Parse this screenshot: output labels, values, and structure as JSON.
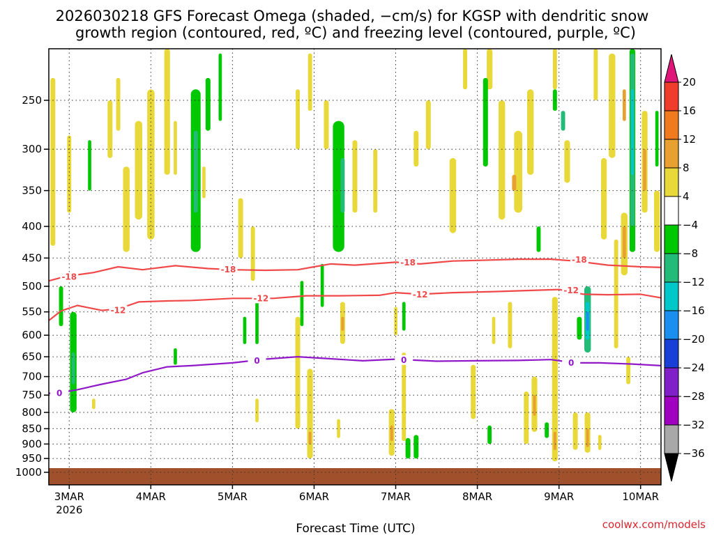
{
  "chart_data": {
    "type": "heatmap",
    "title_line1": "2026030218 GFS Forecast Omega (shaded, −cm/s) for KGSP with dendritic snow",
    "title_line2": "growth region (contoured, red, ºC) and freezing level (contoured, purple, ºC)",
    "xlabel": "Forecast Time (UTC)",
    "credit": "coolwx.com/models",
    "x_ticks": [
      "3MAR",
      "4MAR",
      "5MAR",
      "6MAR",
      "7MAR",
      "8MAR",
      "9MAR",
      "10MAR"
    ],
    "x_year": "2026",
    "x_range_days": [
      2.75,
      10.25
    ],
    "y_ticks": [
      "250",
      "300",
      "350",
      "400",
      "450",
      "500",
      "550",
      "600",
      "650",
      "700",
      "750",
      "800",
      "850",
      "900",
      "950",
      "1000"
    ],
    "y_range_hpa": [
      200,
      1000
    ],
    "colorbar_labels": [
      "20",
      "16",
      "12",
      "8",
      "4",
      "−4",
      "−8",
      "−12",
      "−16",
      "−20",
      "−24",
      "−28",
      "−32",
      "−36"
    ],
    "colorbar_colors": [
      "#e0157a",
      "#f03c2a",
      "#f07a1e",
      "#e8a030",
      "#e8d83a",
      "#ffffff",
      "#00c800",
      "#22bb77",
      "#00c8c8",
      "#1a8ff0",
      "#1840d8",
      "#8020c8",
      "#a000c0",
      "#a8a8a8",
      "#000000"
    ],
    "omega_colors": {
      "pos4": "#e8d83a",
      "pos8": "#e8a030",
      "neg4": "#00c800",
      "neg8": "#22bb77",
      "neg12": "#00c8c8",
      "neg16": "#1a8ff0"
    },
    "surface_color": "#a0502a",
    "contours": [
      {
        "label": "-18",
        "color": "#f04848",
        "points": [
          [
            2.75,
            490
          ],
          [
            2.95,
            482
          ],
          [
            3.3,
            475
          ],
          [
            3.6,
            465
          ],
          [
            3.9,
            470
          ],
          [
            4.3,
            463
          ],
          [
            4.7,
            468
          ],
          [
            5.0,
            470
          ],
          [
            5.4,
            471
          ],
          [
            5.8,
            470
          ],
          [
            6.0,
            465
          ],
          [
            6.2,
            460
          ],
          [
            6.5,
            462
          ],
          [
            7.0,
            457
          ],
          [
            7.3,
            460
          ],
          [
            7.7,
            455
          ],
          [
            8.0,
            454
          ],
          [
            8.5,
            452
          ],
          [
            8.9,
            452
          ],
          [
            9.2,
            455
          ],
          [
            9.6,
            462
          ],
          [
            10.0,
            465
          ],
          [
            10.25,
            466
          ]
        ],
        "label_at": [
          [
            3.0,
            483
          ],
          [
            4.95,
            470
          ],
          [
            7.15,
            458
          ],
          [
            9.25,
            453
          ]
        ]
      },
      {
        "label": "-12",
        "color": "#f04848",
        "points": [
          [
            2.75,
            568
          ],
          [
            2.9,
            548
          ],
          [
            3.1,
            537
          ],
          [
            3.4,
            547
          ],
          [
            3.6,
            544
          ],
          [
            3.85,
            530
          ],
          [
            4.2,
            528
          ],
          [
            4.5,
            527
          ],
          [
            5.0,
            523
          ],
          [
            5.5,
            523
          ],
          [
            5.9,
            518
          ],
          [
            6.3,
            518
          ],
          [
            6.8,
            517
          ],
          [
            7.0,
            512
          ],
          [
            7.3,
            515
          ],
          [
            7.7,
            512
          ],
          [
            8.2,
            510
          ],
          [
            8.6,
            508
          ],
          [
            9.0,
            506
          ],
          [
            9.3,
            515
          ],
          [
            9.6,
            516
          ],
          [
            10.0,
            515
          ],
          [
            10.25,
            522
          ]
        ],
        "label_at": [
          [
            3.6,
            547
          ],
          [
            5.35,
            523
          ],
          [
            7.3,
            516
          ],
          [
            9.15,
            508
          ]
        ]
      },
      {
        "label": "0",
        "color": "#9018c8",
        "points": [
          [
            2.75,
            745
          ],
          [
            2.9,
            743
          ],
          [
            3.1,
            735
          ],
          [
            3.4,
            720
          ],
          [
            3.7,
            707
          ],
          [
            3.9,
            690
          ],
          [
            4.2,
            675
          ],
          [
            4.5,
            672
          ],
          [
            5.0,
            665
          ],
          [
            5.4,
            656
          ],
          [
            5.8,
            650
          ],
          [
            6.2,
            655
          ],
          [
            6.6,
            660
          ],
          [
            7.0,
            656
          ],
          [
            7.5,
            661
          ],
          [
            8.0,
            660
          ],
          [
            8.5,
            659
          ],
          [
            8.9,
            657
          ],
          [
            9.2,
            665
          ],
          [
            9.5,
            665
          ],
          [
            9.9,
            668
          ],
          [
            10.25,
            672
          ]
        ],
        "label_at": [
          [
            2.88,
            745
          ],
          [
            5.3,
            660
          ],
          [
            7.1,
            658
          ],
          [
            9.15,
            665
          ]
        ]
      }
    ],
    "omega_blobs": [
      {
        "cat": "pos4",
        "x": 2.8,
        "w": 0.06,
        "p1": 230,
        "p2": 430
      },
      {
        "cat": "pos4",
        "x": 3.0,
        "w": 0.05,
        "p1": 285,
        "p2": 380
      },
      {
        "cat": "pos4",
        "x": 3.5,
        "w": 0.06,
        "p1": 250,
        "p2": 310
      },
      {
        "cat": "pos4",
        "x": 3.6,
        "w": 0.05,
        "p1": 230,
        "p2": 280
      },
      {
        "cat": "pos4",
        "x": 3.7,
        "w": 0.08,
        "p1": 320,
        "p2": 440
      },
      {
        "cat": "pos4",
        "x": 3.85,
        "w": 0.09,
        "p1": 270,
        "p2": 390
      },
      {
        "cat": "pos4",
        "x": 4.0,
        "w": 0.09,
        "p1": 240,
        "p2": 420
      },
      {
        "cat": "pos4",
        "x": 4.2,
        "w": 0.07,
        "p1": 200,
        "p2": 330
      },
      {
        "cat": "pos4",
        "x": 4.3,
        "w": 0.04,
        "p1": 270,
        "p2": 330
      },
      {
        "cat": "pos4",
        "x": 4.65,
        "w": 0.04,
        "p1": 320,
        "p2": 360
      },
      {
        "cat": "pos4",
        "x": 5.1,
        "w": 0.06,
        "p1": 360,
        "p2": 450
      },
      {
        "cat": "pos4",
        "x": 5.25,
        "w": 0.05,
        "p1": 400,
        "p2": 490
      },
      {
        "cat": "pos4",
        "x": 5.8,
        "w": 0.05,
        "p1": 240,
        "p2": 300
      },
      {
        "cat": "pos4",
        "x": 5.95,
        "w": 0.05,
        "p1": 210,
        "p2": 260
      },
      {
        "cat": "pos4",
        "x": 6.15,
        "w": 0.06,
        "p1": 250,
        "p2": 300
      },
      {
        "cat": "pos4",
        "x": 6.3,
        "w": 0.05,
        "p1": 290,
        "p2": 330
      },
      {
        "cat": "pos4",
        "x": 6.5,
        "w": 0.06,
        "p1": 290,
        "p2": 380
      },
      {
        "cat": "pos4",
        "x": 6.75,
        "w": 0.05,
        "p1": 300,
        "p2": 380
      },
      {
        "cat": "pos4",
        "x": 7.25,
        "w": 0.06,
        "p1": 280,
        "p2": 320
      },
      {
        "cat": "pos4",
        "x": 7.4,
        "w": 0.06,
        "p1": 250,
        "p2": 300
      },
      {
        "cat": "pos4",
        "x": 7.7,
        "w": 0.08,
        "p1": 310,
        "p2": 410
      },
      {
        "cat": "pos4",
        "x": 7.85,
        "w": 0.05,
        "p1": 200,
        "p2": 240
      },
      {
        "cat": "pos4",
        "x": 8.15,
        "w": 0.07,
        "p1": 200,
        "p2": 240
      },
      {
        "cat": "pos4",
        "x": 8.3,
        "w": 0.08,
        "p1": 250,
        "p2": 390
      },
      {
        "cat": "pos4",
        "x": 8.5,
        "w": 0.1,
        "p1": 280,
        "p2": 380
      },
      {
        "cat": "pos4",
        "x": 8.65,
        "w": 0.08,
        "p1": 240,
        "p2": 330
      },
      {
        "cat": "pos8",
        "x": 8.45,
        "w": 0.05,
        "p1": 330,
        "p2": 350
      },
      {
        "cat": "pos4",
        "x": 8.95,
        "w": 0.05,
        "p1": 200,
        "p2": 240
      },
      {
        "cat": "pos4",
        "x": 9.1,
        "w": 0.07,
        "p1": 290,
        "p2": 340
      },
      {
        "cat": "pos4",
        "x": 9.45,
        "w": 0.05,
        "p1": 200,
        "p2": 250
      },
      {
        "cat": "pos4",
        "x": 9.55,
        "w": 0.07,
        "p1": 310,
        "p2": 420
      },
      {
        "cat": "pos4",
        "x": 9.65,
        "w": 0.08,
        "p1": 210,
        "p2": 310
      },
      {
        "cat": "pos8",
        "x": 9.8,
        "w": 0.04,
        "p1": 240,
        "p2": 270
      },
      {
        "cat": "pos4",
        "x": 9.8,
        "w": 0.08,
        "p1": 380,
        "p2": 480
      },
      {
        "cat": "pos8",
        "x": 9.8,
        "w": 0.04,
        "p1": 400,
        "p2": 450
      },
      {
        "cat": "pos4",
        "x": 10.05,
        "w": 0.07,
        "p1": 260,
        "p2": 380
      },
      {
        "cat": "pos8",
        "x": 10.05,
        "w": 0.04,
        "p1": 300,
        "p2": 350
      },
      {
        "cat": "pos4",
        "x": 10.2,
        "w": 0.07,
        "p1": 350,
        "p2": 440
      },
      {
        "cat": "neg4",
        "x": 2.9,
        "w": 0.05,
        "p1": 500,
        "p2": 580
      },
      {
        "cat": "neg4",
        "x": 3.05,
        "w": 0.08,
        "p1": 550,
        "p2": 800
      },
      {
        "cat": "neg8",
        "x": 3.05,
        "w": 0.04,
        "p1": 640,
        "p2": 720
      },
      {
        "cat": "neg4",
        "x": 3.25,
        "w": 0.04,
        "p1": 290,
        "p2": 350
      },
      {
        "cat": "neg4",
        "x": 4.55,
        "w": 0.12,
        "p1": 240,
        "p2": 440
      },
      {
        "cat": "neg8",
        "x": 4.55,
        "w": 0.05,
        "p1": 280,
        "p2": 380
      },
      {
        "cat": "neg4",
        "x": 4.7,
        "w": 0.06,
        "p1": 230,
        "p2": 280
      },
      {
        "cat": "neg4",
        "x": 4.85,
        "w": 0.04,
        "p1": 210,
        "p2": 270
      },
      {
        "cat": "neg4",
        "x": 6.3,
        "w": 0.14,
        "p1": 270,
        "p2": 440
      },
      {
        "cat": "neg8",
        "x": 6.35,
        "w": 0.05,
        "p1": 310,
        "p2": 380
      },
      {
        "cat": "neg4",
        "x": 6.1,
        "w": 0.04,
        "p1": 460,
        "p2": 540
      },
      {
        "cat": "neg4",
        "x": 5.85,
        "w": 0.04,
        "p1": 490,
        "p2": 580
      },
      {
        "cat": "neg4",
        "x": 5.15,
        "w": 0.04,
        "p1": 560,
        "p2": 620
      },
      {
        "cat": "neg4",
        "x": 5.3,
        "w": 0.04,
        "p1": 520,
        "p2": 620
      },
      {
        "cat": "neg4",
        "x": 4.3,
        "w": 0.04,
        "p1": 630,
        "p2": 670
      },
      {
        "cat": "neg4",
        "x": 8.1,
        "w": 0.06,
        "p1": 230,
        "p2": 320
      },
      {
        "cat": "neg4",
        "x": 8.75,
        "w": 0.05,
        "p1": 400,
        "p2": 440
      },
      {
        "cat": "neg4",
        "x": 8.95,
        "w": 0.05,
        "p1": 240,
        "p2": 260
      },
      {
        "cat": "neg8",
        "x": 9.05,
        "w": 0.05,
        "p1": 260,
        "p2": 280
      },
      {
        "cat": "neg4",
        "x": 9.25,
        "w": 0.06,
        "p1": 560,
        "p2": 610
      },
      {
        "cat": "neg8",
        "x": 9.35,
        "w": 0.08,
        "p1": 500,
        "p2": 640
      },
      {
        "cat": "neg12",
        "x": 9.35,
        "w": 0.05,
        "p1": 530,
        "p2": 610
      },
      {
        "cat": "neg16",
        "x": 9.35,
        "w": 0.03,
        "p1": 550,
        "p2": 590
      },
      {
        "cat": "neg4",
        "x": 9.9,
        "w": 0.07,
        "p1": 200,
        "p2": 440
      },
      {
        "cat": "neg8",
        "x": 9.9,
        "w": 0.05,
        "p1": 210,
        "p2": 400
      },
      {
        "cat": "neg12",
        "x": 9.9,
        "w": 0.03,
        "p1": 240,
        "p2": 330
      },
      {
        "cat": "neg4",
        "x": 10.2,
        "w": 0.04,
        "p1": 260,
        "p2": 320
      },
      {
        "cat": "neg4",
        "x": 7.15,
        "w": 0.06,
        "p1": 880,
        "p2": 950
      },
      {
        "cat": "neg4",
        "x": 7.25,
        "w": 0.06,
        "p1": 870,
        "p2": 950
      },
      {
        "cat": "neg4",
        "x": 7.1,
        "w": 0.04,
        "p1": 530,
        "p2": 590
      },
      {
        "cat": "neg4",
        "x": 8.15,
        "w": 0.05,
        "p1": 840,
        "p2": 900
      },
      {
        "cat": "neg4",
        "x": 8.85,
        "w": 0.05,
        "p1": 830,
        "p2": 880
      },
      {
        "cat": "pos4",
        "x": 3.3,
        "w": 0.04,
        "p1": 760,
        "p2": 790
      },
      {
        "cat": "pos4",
        "x": 5.3,
        "w": 0.04,
        "p1": 760,
        "p2": 830
      },
      {
        "cat": "pos4",
        "x": 5.8,
        "w": 0.06,
        "p1": 560,
        "p2": 850
      },
      {
        "cat": "pos4",
        "x": 5.95,
        "w": 0.07,
        "p1": 680,
        "p2": 950
      },
      {
        "cat": "pos8",
        "x": 5.95,
        "w": 0.03,
        "p1": 860,
        "p2": 900
      },
      {
        "cat": "pos4",
        "x": 6.35,
        "w": 0.06,
        "p1": 530,
        "p2": 620
      },
      {
        "cat": "pos8",
        "x": 6.35,
        "w": 0.03,
        "p1": 560,
        "p2": 590
      },
      {
        "cat": "pos4",
        "x": 6.3,
        "w": 0.04,
        "p1": 820,
        "p2": 880
      },
      {
        "cat": "pos4",
        "x": 6.95,
        "w": 0.07,
        "p1": 790,
        "p2": 940
      },
      {
        "cat": "pos8",
        "x": 6.95,
        "w": 0.03,
        "p1": 840,
        "p2": 890
      },
      {
        "cat": "pos4",
        "x": 7.1,
        "w": 0.05,
        "p1": 640,
        "p2": 890
      },
      {
        "cat": "pos4",
        "x": 7.0,
        "w": 0.04,
        "p1": 540,
        "p2": 600
      },
      {
        "cat": "pos4",
        "x": 7.95,
        "w": 0.06,
        "p1": 670,
        "p2": 820
      },
      {
        "cat": "pos4",
        "x": 8.4,
        "w": 0.05,
        "p1": 530,
        "p2": 630
      },
      {
        "cat": "pos4",
        "x": 8.6,
        "w": 0.06,
        "p1": 740,
        "p2": 900
      },
      {
        "cat": "pos4",
        "x": 8.7,
        "w": 0.07,
        "p1": 700,
        "p2": 860
      },
      {
        "cat": "pos8",
        "x": 8.7,
        "w": 0.03,
        "p1": 750,
        "p2": 810
      },
      {
        "cat": "pos4",
        "x": 8.95,
        "w": 0.07,
        "p1": 520,
        "p2": 960
      },
      {
        "cat": "pos8",
        "x": 8.95,
        "w": 0.03,
        "p1": 860,
        "p2": 920
      },
      {
        "cat": "pos4",
        "x": 9.2,
        "w": 0.06,
        "p1": 800,
        "p2": 920
      },
      {
        "cat": "pos4",
        "x": 9.35,
        "w": 0.07,
        "p1": 800,
        "p2": 930
      },
      {
        "cat": "pos8",
        "x": 9.35,
        "w": 0.03,
        "p1": 850,
        "p2": 910
      },
      {
        "cat": "pos4",
        "x": 9.5,
        "w": 0.04,
        "p1": 870,
        "p2": 920
      },
      {
        "cat": "pos4",
        "x": 9.7,
        "w": 0.05,
        "p1": 420,
        "p2": 630
      },
      {
        "cat": "pos4",
        "x": 9.85,
        "w": 0.05,
        "p1": 650,
        "p2": 720
      },
      {
        "cat": "pos4",
        "x": 8.2,
        "w": 0.04,
        "p1": 560,
        "p2": 620
      }
    ]
  }
}
